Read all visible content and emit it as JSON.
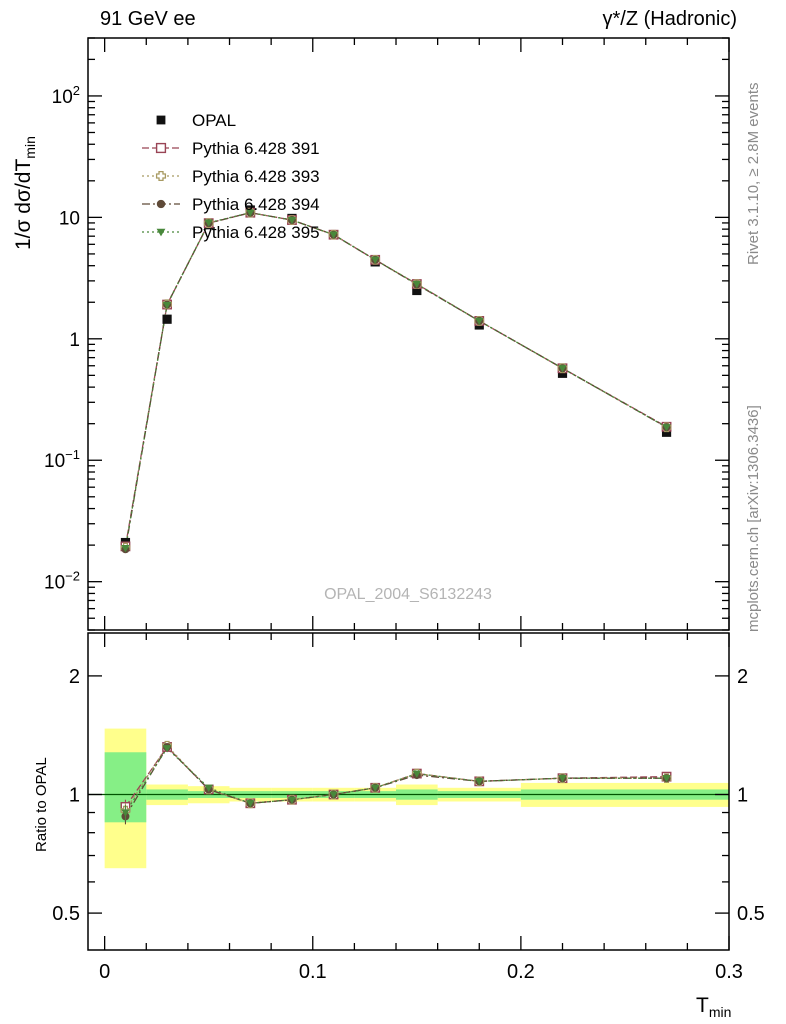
{
  "header": {
    "left": "91 GeV ee",
    "right": "γ*/Z (Hadronic)"
  },
  "sidebars": {
    "rivet": "Rivet 3.1.10, ≥ 2.8M events",
    "mcplots": "mcplots.cern.ch [arXiv:1306.3436]"
  },
  "watermark": "OPAL_2004_S6132243",
  "axes": {
    "ylabel_main": "1/σ dσ/dT",
    "ylabel_sub": "min",
    "xlabel_main": "T",
    "xlabel_sub": "min",
    "ratio_label": "Ratio to OPAL",
    "x_ticks": [
      0,
      0.1,
      0.2,
      0.3
    ],
    "x_minor_step": 0.02,
    "y_tick_exponents": [
      2,
      1,
      0,
      -1,
      -2
    ],
    "ratio_major_ticks": [
      2,
      1,
      0.5
    ],
    "ratio_minor_ticks": [
      0.6,
      0.7,
      0.8,
      0.9
    ]
  },
  "chart_data": {
    "type": "line",
    "title": "",
    "xlabel": "T_min",
    "ylabel": "1/σ dσ/dT_min",
    "ratio_ylabel": "Ratio to OPAL",
    "xlim": [
      -0.008,
      0.3
    ],
    "ylim": [
      0.004,
      300
    ],
    "y_scale": "log",
    "ratio_ylim": [
      0.403,
      2.57
    ],
    "ratio_scale": "log",
    "x": [
      0.01,
      0.03,
      0.05,
      0.07,
      0.09,
      0.11,
      0.13,
      0.15,
      0.18,
      0.22,
      0.27
    ],
    "opal": {
      "name": "OPAL",
      "color": "#111111",
      "marker": "square-filled",
      "values": [
        0.021,
        1.45,
        8.7,
        11.5,
        9.8,
        7.2,
        4.3,
        2.5,
        1.3,
        0.52,
        0.17
      ],
      "err_frac": [
        0.08,
        0.04,
        0.02,
        0.015,
        0.015,
        0.015,
        0.015,
        0.02,
        0.02,
        0.03,
        0.04
      ]
    },
    "series": [
      {
        "name": "Pythia 6.428 391",
        "color": "#994455",
        "marker": "square-open",
        "dash": "7,3",
        "ratio": [
          0.93,
          1.32,
          1.03,
          0.95,
          0.97,
          1.0,
          1.04,
          1.13,
          1.08,
          1.1,
          1.11
        ]
      },
      {
        "name": "Pythia 6.428 393",
        "color": "#a89a62",
        "marker": "plus-open",
        "dash": "2,3",
        "ratio": [
          0.91,
          1.33,
          1.03,
          0.95,
          0.97,
          1.0,
          1.04,
          1.13,
          1.08,
          1.1,
          1.1
        ]
      },
      {
        "name": "Pythia 6.428 394",
        "color": "#5f4a38",
        "marker": "circle-filled",
        "dash": "8,3,2,3",
        "ratio": [
          0.88,
          1.32,
          1.03,
          0.95,
          0.97,
          1.0,
          1.04,
          1.12,
          1.08,
          1.1,
          1.1
        ]
      },
      {
        "name": "Pythia 6.428 395",
        "color": "#49883b",
        "marker": "triangle-down-filled",
        "dash": "2,3",
        "ratio": [
          0.9,
          1.31,
          1.04,
          0.95,
          0.97,
          1.0,
          1.04,
          1.13,
          1.08,
          1.1,
          1.1
        ]
      }
    ],
    "ratio_err": [
      0.04,
      0.015,
      0.008,
      0.008,
      0.008,
      0.008,
      0.008,
      0.01,
      0.01,
      0.012,
      0.015
    ],
    "bands": [
      {
        "x0": 0.0,
        "x1": 0.02,
        "yellow": [
          0.65,
          1.47
        ],
        "green": [
          0.85,
          1.28
        ]
      },
      {
        "x0": 0.02,
        "x1": 0.04,
        "yellow": [
          0.94,
          1.06
        ],
        "green": [
          0.97,
          1.03
        ]
      },
      {
        "x0": 0.04,
        "x1": 0.06,
        "yellow": [
          0.95,
          1.05
        ],
        "green": [
          0.98,
          1.02
        ]
      },
      {
        "x0": 0.06,
        "x1": 0.08,
        "yellow": [
          0.96,
          1.04
        ],
        "green": [
          0.98,
          1.02
        ]
      },
      {
        "x0": 0.08,
        "x1": 0.1,
        "yellow": [
          0.96,
          1.04
        ],
        "green": [
          0.98,
          1.02
        ]
      },
      {
        "x0": 0.1,
        "x1": 0.12,
        "yellow": [
          0.96,
          1.04
        ],
        "green": [
          0.98,
          1.02
        ]
      },
      {
        "x0": 0.12,
        "x1": 0.14,
        "yellow": [
          0.96,
          1.04
        ],
        "green": [
          0.98,
          1.02
        ]
      },
      {
        "x0": 0.14,
        "x1": 0.16,
        "yellow": [
          0.94,
          1.06
        ],
        "green": [
          0.97,
          1.03
        ]
      },
      {
        "x0": 0.16,
        "x1": 0.2,
        "yellow": [
          0.96,
          1.04
        ],
        "green": [
          0.98,
          1.02
        ]
      },
      {
        "x0": 0.2,
        "x1": 0.3,
        "yellow": [
          0.93,
          1.07
        ],
        "green": [
          0.97,
          1.03
        ]
      }
    ],
    "band_colors": {
      "yellow": "#ffff8c",
      "green": "#86ef86"
    },
    "ref_line": {
      "y": 1,
      "color": "#005500"
    },
    "legend_position": "top-left"
  }
}
